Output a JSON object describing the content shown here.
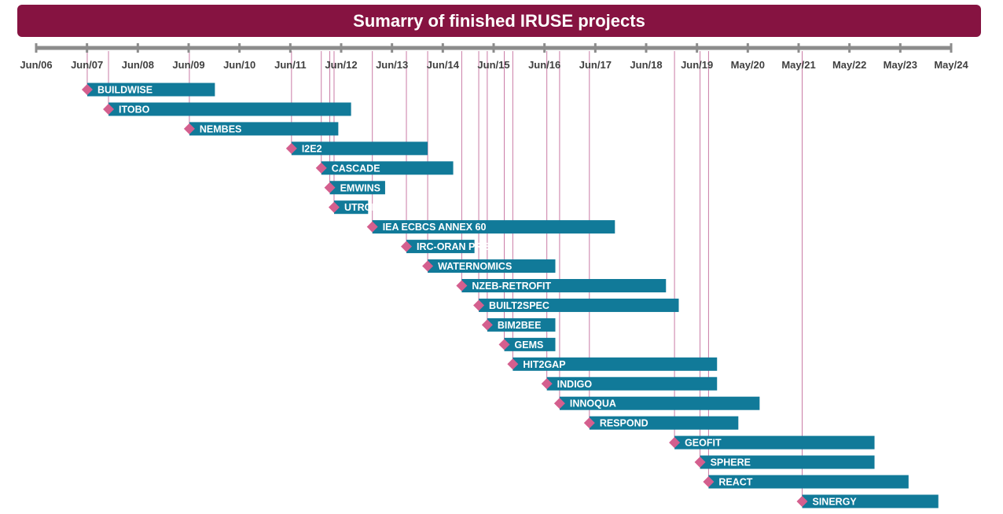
{
  "title": "Sumarry of finished IRUSE projects",
  "colors": {
    "title_bg": "#861341",
    "bar": "#117A99",
    "marker": "#D45F8E",
    "leader": "#C97BA5",
    "axis": "#8C8C8C"
  },
  "chart_data": {
    "type": "gantt",
    "title": "Sumarry of finished IRUSE projects",
    "x_ticks": [
      "Jun/06",
      "Jun/07",
      "Jun/08",
      "Jun/09",
      "Jun/10",
      "Jun/11",
      "Jun/12",
      "Jun/13",
      "Jun/14",
      "Jun/15",
      "Jun/16",
      "Jun/17",
      "Jun/18",
      "Jun/19",
      "May/20",
      "May/21",
      "May/22",
      "May/23",
      "May/24"
    ],
    "x_range": [
      "2006-06",
      "2024-05"
    ],
    "projects": [
      {
        "name": "BUILDWISE",
        "start": "2007-06",
        "end": "2009-12"
      },
      {
        "name": "ITOBO",
        "start": "2007-11",
        "end": "2012-08"
      },
      {
        "name": "NEMBES",
        "start": "2009-06",
        "end": "2012-05"
      },
      {
        "name": "I2E2",
        "start": "2011-06",
        "end": "2014-02"
      },
      {
        "name": "CASCADE",
        "start": "2012-01",
        "end": "2014-08"
      },
      {
        "name": "EMWINS",
        "start": "2012-03",
        "end": "2013-04"
      },
      {
        "name": "UTRCI-TS",
        "start": "2012-04",
        "end": "2012-12"
      },
      {
        "name": "IEA ECBCS ANNEX 60",
        "start": "2013-01",
        "end": "2017-10"
      },
      {
        "name": "IRC-ORAN PRE-",
        "start": "2013-09",
        "end": "2015-01"
      },
      {
        "name": "WATERNOMICS",
        "start": "2014-02",
        "end": "2016-08"
      },
      {
        "name": "NZEB-RETROFIT",
        "start": "2014-10",
        "end": "2018-10"
      },
      {
        "name": "BUILT2SPEC",
        "start": "2015-02",
        "end": "2019-01"
      },
      {
        "name": "BIM2BEE",
        "start": "2015-04",
        "end": "2016-08"
      },
      {
        "name": "GEMS",
        "start": "2015-08",
        "end": "2016-08"
      },
      {
        "name": "HIT2GAP",
        "start": "2015-10",
        "end": "2019-10"
      },
      {
        "name": "INDIGO",
        "start": "2016-06",
        "end": "2019-10"
      },
      {
        "name": "INNOQUA",
        "start": "2016-09",
        "end": "2020-08"
      },
      {
        "name": "RESPOND",
        "start": "2017-04",
        "end": "2020-03"
      },
      {
        "name": "GEOFIT",
        "start": "2018-12",
        "end": "2022-11"
      },
      {
        "name": "SPHERE",
        "start": "2019-06",
        "end": "2022-11"
      },
      {
        "name": "REACT",
        "start": "2019-08",
        "end": "2023-07"
      },
      {
        "name": "SINERGY",
        "start": "2021-06",
        "end": "2024-02"
      }
    ]
  }
}
